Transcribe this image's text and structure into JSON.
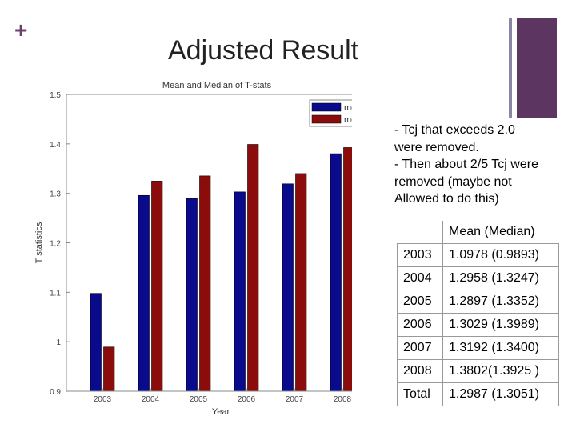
{
  "slide": {
    "title": "Adjusted Result",
    "plus_symbol": "+",
    "accent_color": "#5c3660",
    "bullets": [
      "- Tcj that exceeds 2.0",
      "were removed.",
      "- Then about 2/5 Tcj were",
      "removed (maybe not",
      "Allowed to do this)"
    ]
  },
  "table": {
    "header": "Mean (Median)",
    "rows": [
      {
        "year": "2003",
        "value": "1.0978  (0.9893)"
      },
      {
        "year": "2004",
        "value": " 1.2958 (1.3247)"
      },
      {
        "year": "2005",
        "value": "1.2897  (1.3352)"
      },
      {
        "year": "2006",
        "value": " 1.3029 (1.3989)"
      },
      {
        "year": "2007",
        "value": "1.3192  (1.3400)"
      },
      {
        "year": "2008",
        "value": " 1.3802(1.3925 )"
      },
      {
        "year": "Total",
        "value": "1.2987  (1.3051)"
      }
    ]
  },
  "chart_data": {
    "type": "bar",
    "title": "Mean and Median of T-stats",
    "xlabel": "Year",
    "ylabel": "T statistics",
    "categories": [
      "2003",
      "2004",
      "2005",
      "2006",
      "2007",
      "2008"
    ],
    "series": [
      {
        "name": "mean",
        "color": "#0a0a8c",
        "values": [
          1.0978,
          1.2958,
          1.2897,
          1.3029,
          1.3192,
          1.3802
        ]
      },
      {
        "name": "median",
        "color": "#8c0c0c",
        "values": [
          0.9893,
          1.3247,
          1.3352,
          1.3989,
          1.34,
          1.3925
        ]
      }
    ],
    "ylim": [
      0.9,
      1.5
    ],
    "yticks": [
      "0.9",
      "1",
      "1.1",
      "1.2",
      "1.3",
      "1.4",
      "1.5"
    ],
    "legend_position": "top-right",
    "grid": false
  }
}
